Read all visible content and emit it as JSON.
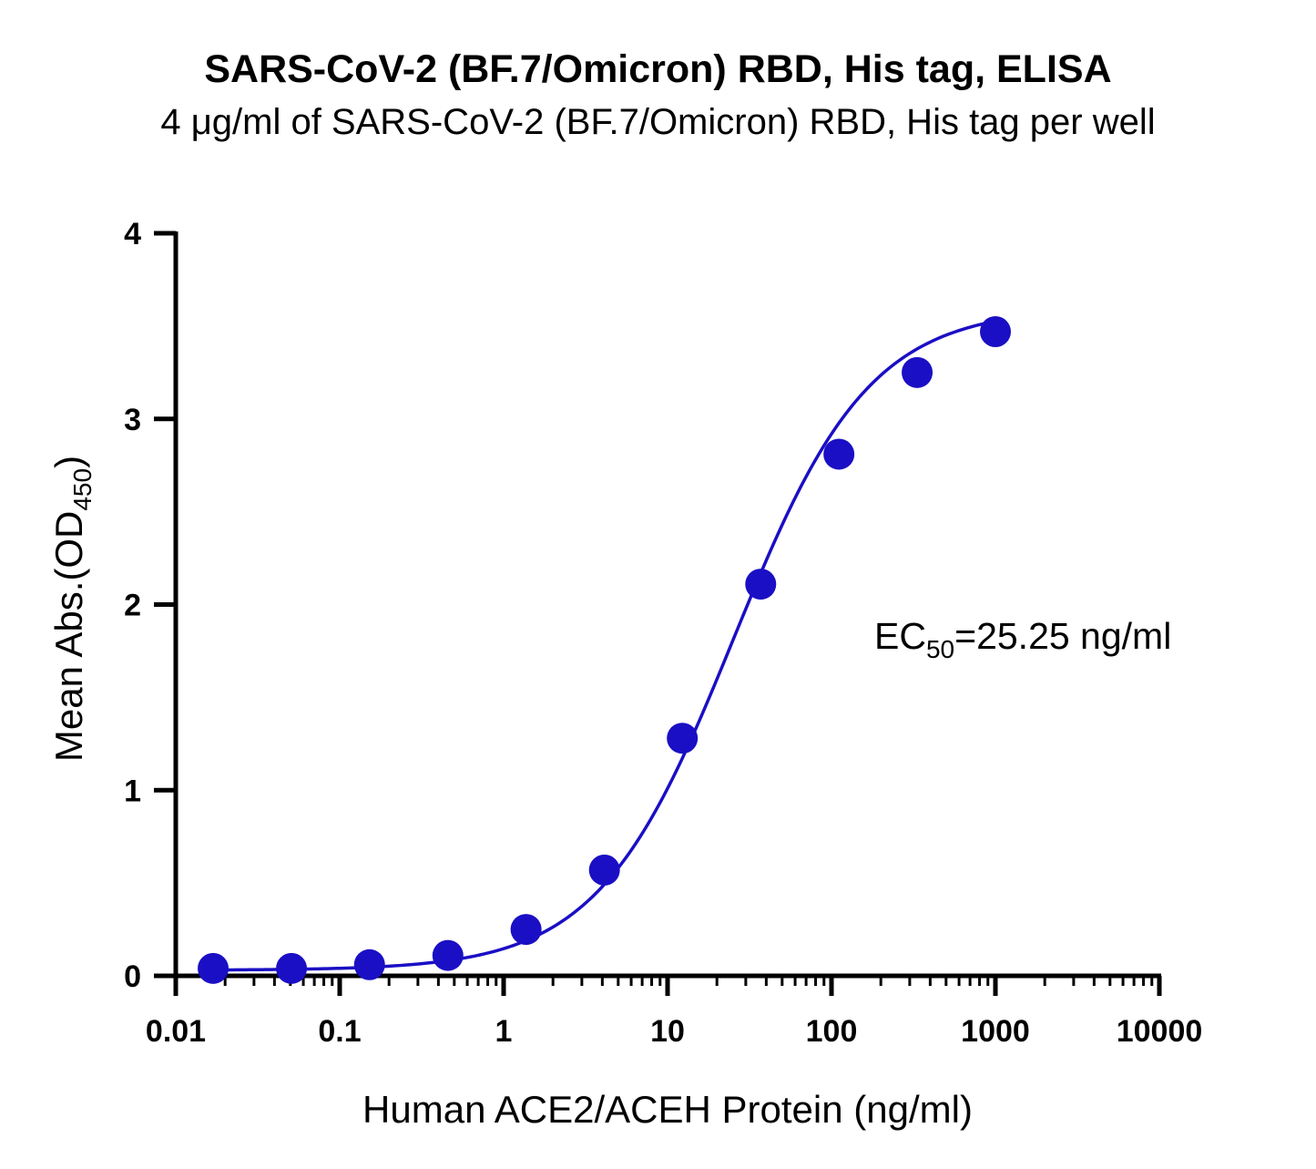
{
  "chart_data": {
    "type": "scatter",
    "title": "SARS-CoV-2 (BF.7/Omicron) RBD, His tag, ELISA",
    "subtitle": "4 μg/ml of SARS-CoV-2 (BF.7/Omicron) RBD, His tag per well",
    "xlabel": "Human ACE2/ACEH Protein (ng/ml)",
    "ylabel": {
      "main": "Mean Abs.(OD",
      "sub": "450",
      "close": ")"
    },
    "x_scale": "log",
    "xlim": [
      0.01,
      10000
    ],
    "ylim": [
      0,
      4
    ],
    "x_ticks": [
      0.01,
      0.1,
      1,
      10,
      100,
      1000,
      10000
    ],
    "x_tick_labels": [
      "0.01",
      "0.1",
      "1",
      "10",
      "100",
      "1000",
      "10000"
    ],
    "y_ticks": [
      0,
      1,
      2,
      3,
      4
    ],
    "y_tick_labels": [
      "0",
      "1",
      "2",
      "3",
      "4"
    ],
    "grid": false,
    "color": "#1a0fc4",
    "series": [
      {
        "x": [
          0.0169,
          0.0508,
          0.152,
          0.457,
          1.37,
          4.12,
          12.3,
          37.0,
          111,
          333,
          1000
        ],
        "y": [
          0.04,
          0.04,
          0.06,
          0.11,
          0.25,
          0.57,
          1.28,
          2.11,
          2.81,
          3.25,
          3.47
        ]
      }
    ],
    "fit": {
      "bottom": 0.03,
      "top": 3.6,
      "ec50": 25.25,
      "hill": 1.05
    },
    "annotation": {
      "prefix": "EC",
      "sub": "50",
      "suffix": "=25.25 ng/ml"
    }
  }
}
